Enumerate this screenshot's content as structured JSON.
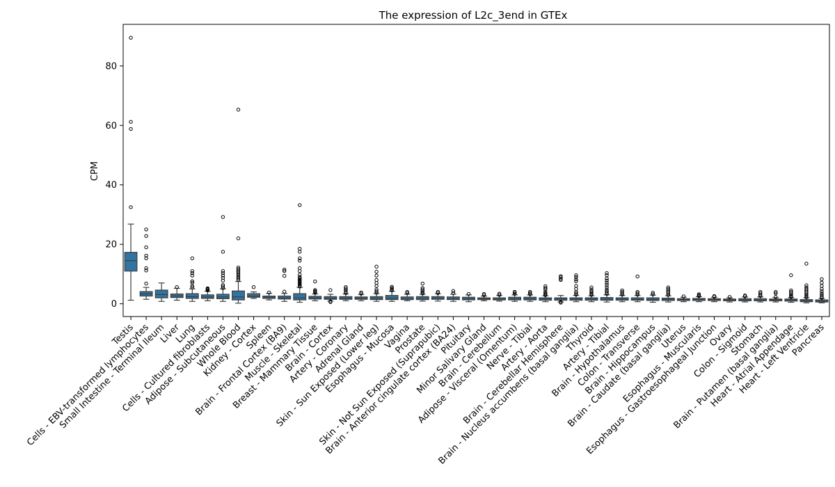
{
  "chart_data": {
    "type": "box",
    "title": "The expression of L2c_3end in GTEx",
    "xlabel": "",
    "ylabel": "CPM",
    "ylim": [
      -4.3,
      94
    ],
    "yticks": [
      0,
      20,
      40,
      60,
      80
    ],
    "grid": false,
    "legend": "none",
    "box_color": "#3274a1",
    "categories": [
      "Testis",
      "Cells - EBV-transformed lymphocytes",
      "Small Intestine - Terminal Ileum",
      "Liver",
      "Lung",
      "Cells - Cultured fibroblasts",
      "Adipose - Subcutaneous",
      "Whole Blood",
      "Kidney - Cortex",
      "Spleen",
      "Brain - Frontal Cortex (BA9)",
      "Muscle - Skeletal",
      "Breast - Mammary Tissue",
      "Brain - Cortex",
      "Artery - Coronary",
      "Adrenal Gland",
      "Skin - Sun Exposed (Lower leg)",
      "Esophagus - Mucosa",
      "Vagina",
      "Prostate",
      "Skin - Not Sun Exposed (Suprapubic)",
      "Brain - Anterior cingulate cortex (BA24)",
      "Pituitary",
      "Minor Salivary Gland",
      "Brain - Cerebellum",
      "Adipose - Visceral (Omentum)",
      "Nerve - Tibial",
      "Artery - Aorta",
      "Brain - Cerebellar Hemisphere",
      "Brain - Nucleus accumbens (basal ganglia)",
      "Thyroid",
      "Artery - Tibial",
      "Brain - Hypothalamus",
      "Colon - Transverse",
      "Brain - Hippocampus",
      "Brain - Caudate (basal ganglia)",
      "Uterus",
      "Esophagus - Muscularis",
      "Esophagus - Gastroesophageal Junction",
      "Ovary",
      "Colon - Sigmoid",
      "Stomach",
      "Brain - Putamen (basal ganglia)",
      "Heart - Atrial Appendage",
      "Heart - Left Ventricle",
      "Pancreas"
    ],
    "boxes": [
      {
        "whislo": 1.2,
        "q1": 11.0,
        "med": 14.5,
        "q3": 17.3,
        "whishi": 26.8,
        "fliers": [
          32.5,
          58.8,
          61.2,
          89.5
        ]
      },
      {
        "whislo": 1.5,
        "q1": 2.6,
        "med": 3.3,
        "q3": 4.1,
        "whishi": 5.5,
        "fliers": [
          6.8,
          11.2,
          12.0,
          15.3,
          16.2,
          19.0,
          22.8,
          25.0
        ]
      },
      {
        "whislo": 0.8,
        "q1": 2.0,
        "med": 3.1,
        "q3": 4.6,
        "whishi": 7.0,
        "fliers": []
      },
      {
        "whislo": 1.2,
        "q1": 2.1,
        "med": 2.6,
        "q3": 3.3,
        "whishi": 5.2,
        "fliers": [
          5.6
        ]
      },
      {
        "whislo": 0.8,
        "q1": 1.8,
        "med": 2.4,
        "q3": 3.4,
        "whishi": 5.0,
        "fliers": [
          5.5,
          6.0,
          7.1,
          7.6,
          9.5,
          10.3,
          11.0,
          15.3
        ]
      },
      {
        "whislo": 1.0,
        "q1": 1.8,
        "med": 2.3,
        "q3": 3.0,
        "whishi": 4.2,
        "fliers": [
          4.5,
          4.8,
          5.0,
          5.2
        ]
      },
      {
        "whislo": 0.8,
        "q1": 1.7,
        "med": 2.3,
        "q3": 3.2,
        "whishi": 5.0,
        "fliers": [
          5.3,
          5.8,
          6.3,
          7.8,
          8.7,
          9.5,
          10.3,
          11.0,
          17.5,
          29.2
        ]
      },
      {
        "whislo": 0.2,
        "q1": 1.3,
        "med": 2.3,
        "q3": 4.3,
        "whishi": 7.5,
        "fliers": [
          8.0,
          8.5,
          9.0,
          9.6,
          10.2,
          10.7,
          11.2,
          11.7,
          12.2,
          22.0,
          65.3
        ]
      },
      {
        "whislo": 1.8,
        "q1": 2.2,
        "med": 2.6,
        "q3": 3.4,
        "whishi": 4.0,
        "fliers": [
          5.6
        ]
      },
      {
        "whislo": 1.3,
        "q1": 1.8,
        "med": 2.2,
        "q3": 2.6,
        "whishi": 3.5,
        "fliers": [
          3.8
        ]
      },
      {
        "whislo": 0.8,
        "q1": 1.6,
        "med": 2.0,
        "q3": 2.6,
        "whishi": 3.5,
        "fliers": [
          4.1,
          9.4,
          11.0,
          11.5
        ]
      },
      {
        "whislo": 0.5,
        "q1": 1.3,
        "med": 2.0,
        "q3": 3.4,
        "whishi": 5.5,
        "fliers": [
          5.8,
          6.2,
          6.6,
          7.0,
          7.4,
          7.8,
          8.2,
          8.6,
          9.0,
          9.8,
          11.0,
          12.0,
          14.5,
          15.3,
          17.5,
          18.5,
          33.2
        ]
      },
      {
        "whislo": 1.0,
        "q1": 1.6,
        "med": 2.0,
        "q3": 2.5,
        "whishi": 3.3,
        "fliers": [
          3.7,
          4.0,
          4.3,
          4.6,
          7.5
        ]
      },
      {
        "whislo": 0.9,
        "q1": 1.5,
        "med": 1.9,
        "q3": 2.4,
        "whishi": 3.2,
        "fliers": [
          0.6,
          0.8,
          4.6
        ]
      },
      {
        "whislo": 1.0,
        "q1": 1.5,
        "med": 1.9,
        "q3": 2.4,
        "whishi": 3.3,
        "fliers": [
          3.6,
          4.0,
          4.5,
          5.1,
          5.6
        ]
      },
      {
        "whislo": 1.0,
        "q1": 1.5,
        "med": 1.9,
        "q3": 2.3,
        "whishi": 3.1,
        "fliers": [
          3.4,
          3.8
        ]
      },
      {
        "whislo": 0.8,
        "q1": 1.4,
        "med": 1.9,
        "q3": 2.4,
        "whishi": 3.4,
        "fliers": [
          3.7,
          4.2,
          4.8,
          6.0,
          7.0,
          8.0,
          9.5,
          10.8,
          12.5
        ]
      },
      {
        "whislo": 0.8,
        "q1": 1.4,
        "med": 1.9,
        "q3": 2.8,
        "whishi": 4.2,
        "fliers": [
          4.5,
          4.9,
          5.3,
          5.7
        ]
      },
      {
        "whislo": 1.0,
        "q1": 1.4,
        "med": 1.8,
        "q3": 2.3,
        "whishi": 3.2,
        "fliers": [
          3.6,
          4.0
        ]
      },
      {
        "whislo": 0.9,
        "q1": 1.4,
        "med": 1.9,
        "q3": 2.4,
        "whishi": 3.2,
        "fliers": [
          3.5,
          3.9,
          4.3,
          4.8,
          5.3,
          6.8
        ]
      },
      {
        "whislo": 0.9,
        "q1": 1.5,
        "med": 1.9,
        "q3": 2.4,
        "whishi": 3.4,
        "fliers": [
          3.6,
          4.0
        ]
      },
      {
        "whislo": 0.8,
        "q1": 1.4,
        "med": 1.8,
        "q3": 2.3,
        "whishi": 3.2,
        "fliers": [
          3.6,
          4.3
        ]
      },
      {
        "whislo": 0.7,
        "q1": 1.3,
        "med": 1.7,
        "q3": 2.2,
        "whishi": 3.0,
        "fliers": [
          3.3
        ]
      },
      {
        "whislo": 1.0,
        "q1": 1.4,
        "med": 1.7,
        "q3": 2.0,
        "whishi": 2.6,
        "fliers": [
          2.9,
          3.3
        ]
      },
      {
        "whislo": 0.9,
        "q1": 1.3,
        "med": 1.6,
        "q3": 2.0,
        "whishi": 2.8,
        "fliers": [
          3.0,
          3.4
        ]
      },
      {
        "whislo": 0.8,
        "q1": 1.3,
        "med": 1.7,
        "q3": 2.2,
        "whishi": 3.0,
        "fliers": [
          3.3,
          3.8,
          4.0
        ]
      },
      {
        "whislo": 0.8,
        "q1": 1.3,
        "med": 1.7,
        "q3": 2.2,
        "whishi": 3.0,
        "fliers": [
          3.2,
          3.6,
          4.0
        ]
      },
      {
        "whislo": 0.7,
        "q1": 1.2,
        "med": 1.6,
        "q3": 2.0,
        "whishi": 2.7,
        "fliers": [
          2.9,
          3.2,
          3.5,
          4.0,
          4.8,
          5.3,
          5.9
        ]
      },
      {
        "whislo": 0.6,
        "q1": 1.2,
        "med": 1.6,
        "q3": 2.0,
        "whishi": 2.8,
        "fliers": [
          0.4,
          0.6,
          8.0,
          8.4,
          8.9,
          9.3
        ]
      },
      {
        "whislo": 0.7,
        "q1": 1.2,
        "med": 1.6,
        "q3": 2.0,
        "whishi": 2.8,
        "fliers": [
          3.1,
          3.5,
          4.0,
          5.0,
          6.0,
          7.6,
          8.2,
          9.0,
          9.6
        ]
      },
      {
        "whislo": 0.7,
        "q1": 1.2,
        "med": 1.6,
        "q3": 2.0,
        "whishi": 2.7,
        "fliers": [
          3.0,
          3.3,
          3.7,
          4.2,
          4.8,
          5.5
        ]
      },
      {
        "whislo": 0.6,
        "q1": 1.2,
        "med": 1.6,
        "q3": 2.1,
        "whishi": 3.0,
        "fliers": [
          3.3,
          3.7,
          4.2,
          4.8,
          5.5,
          6.3,
          7.0,
          7.8,
          8.5,
          9.6,
          10.3
        ]
      },
      {
        "whislo": 0.7,
        "q1": 1.2,
        "med": 1.6,
        "q3": 2.0,
        "whishi": 2.8,
        "fliers": [
          3.1,
          3.5,
          4.0,
          4.5
        ]
      },
      {
        "whislo": 0.7,
        "q1": 1.2,
        "med": 1.5,
        "q3": 2.0,
        "whishi": 2.8,
        "fliers": [
          3.1,
          3.5,
          4.0,
          9.2
        ]
      },
      {
        "whislo": 0.5,
        "q1": 1.1,
        "med": 1.5,
        "q3": 2.0,
        "whishi": 2.9,
        "fliers": [
          3.2,
          3.7
        ]
      },
      {
        "whislo": 0.6,
        "q1": 1.1,
        "med": 1.5,
        "q3": 1.9,
        "whishi": 2.7,
        "fliers": [
          3.0,
          3.5,
          4.0,
          4.5,
          5.0,
          5.5
        ]
      },
      {
        "whislo": 0.7,
        "q1": 1.1,
        "med": 1.4,
        "q3": 1.7,
        "whishi": 2.2,
        "fliers": [
          2.5
        ]
      },
      {
        "whislo": 0.7,
        "q1": 1.1,
        "med": 1.4,
        "q3": 1.8,
        "whishi": 2.4,
        "fliers": [
          2.6,
          2.9,
          3.2
        ]
      },
      {
        "whislo": 0.7,
        "q1": 1.1,
        "med": 1.4,
        "q3": 1.7,
        "whishi": 2.2,
        "fliers": [
          2.4,
          2.6
        ]
      },
      {
        "whislo": 0.6,
        "q1": 1.0,
        "med": 1.3,
        "q3": 1.6,
        "whishi": 2.0,
        "fliers": [
          2.3
        ]
      },
      {
        "whislo": 0.6,
        "q1": 1.0,
        "med": 1.3,
        "q3": 1.7,
        "whishi": 2.3,
        "fliers": [
          2.5,
          2.8
        ]
      },
      {
        "whislo": 0.6,
        "q1": 1.0,
        "med": 1.3,
        "q3": 1.7,
        "whishi": 2.3,
        "fliers": [
          2.6,
          3.0,
          3.5,
          4.0
        ]
      },
      {
        "whislo": 0.6,
        "q1": 1.0,
        "med": 1.3,
        "q3": 1.6,
        "whishi": 2.1,
        "fliers": [
          2.3,
          3.5,
          4.0
        ]
      },
      {
        "whislo": 0.5,
        "q1": 0.9,
        "med": 1.3,
        "q3": 1.6,
        "whishi": 2.1,
        "fliers": [
          2.3,
          2.6,
          3.0,
          3.5,
          4.0,
          4.5,
          9.6
        ]
      },
      {
        "whislo": 0.3,
        "q1": 0.7,
        "med": 1.0,
        "q3": 1.4,
        "whishi": 2.0,
        "fliers": [
          2.2,
          2.6,
          3.0,
          3.5,
          4.0,
          4.5,
          5.0,
          5.5,
          6.2,
          13.5
        ]
      },
      {
        "whislo": 0.3,
        "q1": 0.6,
        "med": 0.9,
        "q3": 1.3,
        "whishi": 1.8,
        "fliers": [
          2.0,
          2.4,
          2.9,
          3.5,
          4.2,
          5.0,
          6.0,
          7.1,
          8.3
        ]
      }
    ]
  }
}
